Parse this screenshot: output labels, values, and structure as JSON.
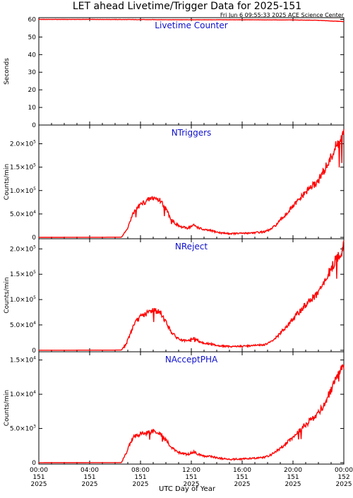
{
  "title": "LET ahead Livetime/Trigger Data for 2025-151",
  "timestamp": "Fri Jun  6 09:55:33 2025 ACE Science Center",
  "xlabel": "UTC Day of Year",
  "colors": {
    "series": "#ff0000",
    "panel_title": "#1010cc",
    "axes": "#000000"
  },
  "chart_data": [
    {
      "type": "line",
      "title": "Livetime Counter",
      "ylabel": "Seconds",
      "xlim": [
        0,
        24
      ],
      "ylim": [
        0,
        61
      ],
      "yticks": [
        {
          "value": 0,
          "label": "0"
        },
        {
          "value": 10,
          "label": "10"
        },
        {
          "value": 20,
          "label": "20"
        },
        {
          "value": 30,
          "label": "30"
        },
        {
          "value": 40,
          "label": "40"
        },
        {
          "value": 50,
          "label": "50"
        },
        {
          "value": 60,
          "label": "60"
        }
      ],
      "grid": false,
      "x": [
        0,
        4,
        8,
        12,
        16,
        20,
        22,
        23,
        24
      ],
      "y": [
        60,
        60,
        59.9,
        59.8,
        59.8,
        59.7,
        59.5,
        59.1,
        58.8
      ]
    },
    {
      "type": "line",
      "title": "NTriggers",
      "ylabel": "Counts/min",
      "xlim": [
        0,
        24
      ],
      "ylim": [
        -3000,
        240000
      ],
      "yticks": [
        {
          "value": 0,
          "label": "0"
        },
        {
          "value": 50000,
          "mant": "5.0×10",
          "exp": "4"
        },
        {
          "value": 100000,
          "mant": "1.0×10",
          "exp": "5"
        },
        {
          "value": 150000,
          "mant": "1.5×10",
          "exp": "5"
        },
        {
          "value": 200000,
          "mant": "2.0×10",
          "exp": "5"
        }
      ],
      "grid": false,
      "x": [
        0,
        6.5,
        6.9,
        7.2,
        7.5,
        8.0,
        8.5,
        9.0,
        9.3,
        9.6,
        10.0,
        10.4,
        10.8,
        11.2,
        11.7,
        12.2,
        12.6,
        13.0,
        13.6,
        14.2,
        15.0,
        16.0,
        17.0,
        17.8,
        18.3,
        18.8,
        19.3,
        19.8,
        20.3,
        20.8,
        21.3,
        21.8,
        22.2,
        22.6,
        23.0,
        23.4,
        23.7,
        24.0
      ],
      "y": [
        0,
        300,
        15000,
        35000,
        55000,
        70000,
        78000,
        85000,
        82000,
        78000,
        60000,
        40000,
        28000,
        22000,
        20000,
        26000,
        20000,
        16000,
        14000,
        10000,
        8000,
        8500,
        10000,
        12000,
        18000,
        30000,
        45000,
        60000,
        75000,
        90000,
        105000,
        115000,
        130000,
        150000,
        170000,
        195000,
        205000,
        220000
      ]
    },
    {
      "type": "line",
      "title": "NReject",
      "ylabel": "Counts/min",
      "xlim": [
        0,
        24
      ],
      "ylim": [
        -3000,
        220000
      ],
      "yticks": [
        {
          "value": 0,
          "label": "0"
        },
        {
          "value": 50000,
          "mant": "5.0×10",
          "exp": "4"
        },
        {
          "value": 100000,
          "mant": "1.0×10",
          "exp": "5"
        },
        {
          "value": 150000,
          "mant": "1.5×10",
          "exp": "5"
        },
        {
          "value": 200000,
          "mant": "2.0×10",
          "exp": "5"
        }
      ],
      "grid": false,
      "x": [
        0,
        6.5,
        6.9,
        7.2,
        7.5,
        8.0,
        8.5,
        9.0,
        9.3,
        9.6,
        10.0,
        10.4,
        10.8,
        11.2,
        11.7,
        12.2,
        12.6,
        13.0,
        13.6,
        14.2,
        15.0,
        16.0,
        17.0,
        17.8,
        18.3,
        18.8,
        19.3,
        19.8,
        20.3,
        20.8,
        21.3,
        21.8,
        22.2,
        22.6,
        23.0,
        23.4,
        23.7,
        24.0
      ],
      "y": [
        0,
        300,
        14000,
        33000,
        52000,
        66000,
        73000,
        80000,
        77000,
        73000,
        56000,
        37000,
        26000,
        20000,
        18000,
        24000,
        18000,
        14000,
        12000,
        9000,
        7500,
        8000,
        9500,
        11000,
        17000,
        28000,
        42000,
        56000,
        70000,
        84000,
        98000,
        108000,
        122000,
        140000,
        160000,
        180000,
        190000,
        205000
      ]
    },
    {
      "type": "line",
      "title": "NAcceptPHA",
      "ylabel": "Counts/min",
      "xlim": [
        0,
        24
      ],
      "ylim": [
        -200,
        16200
      ],
      "yticks": [
        {
          "value": 0,
          "label": "0"
        },
        {
          "value": 5000,
          "mant": "5.0×10",
          "exp": "3"
        },
        {
          "value": 10000,
          "mant": "1.0×10",
          "exp": "4"
        },
        {
          "value": 15000,
          "mant": "1.5×10",
          "exp": "4"
        }
      ],
      "grid": false,
      "x": [
        0,
        6.5,
        6.9,
        7.2,
        7.5,
        8.0,
        8.5,
        9.0,
        9.3,
        9.6,
        10.0,
        10.4,
        10.8,
        11.2,
        11.7,
        12.2,
        12.6,
        13.0,
        13.6,
        14.2,
        15.0,
        16.0,
        17.0,
        17.8,
        18.3,
        18.8,
        19.3,
        19.8,
        20.3,
        20.8,
        21.3,
        21.8,
        22.2,
        22.6,
        23.0,
        23.4,
        23.7,
        24.0
      ],
      "y": [
        0,
        20,
        1500,
        3000,
        3800,
        4200,
        4400,
        4700,
        4500,
        4200,
        3300,
        2300,
        1700,
        1400,
        1200,
        1600,
        1200,
        1000,
        900,
        650,
        500,
        550,
        650,
        800,
        1200,
        1800,
        2600,
        3400,
        4300,
        5200,
        6100,
        6900,
        7800,
        9000,
        10500,
        12000,
        13000,
        14000
      ]
    }
  ],
  "xticks": [
    {
      "value": 0,
      "lines": [
        "00:00",
        "151",
        "2025"
      ]
    },
    {
      "value": 4,
      "lines": [
        "04:00",
        "151",
        "2025"
      ]
    },
    {
      "value": 8,
      "lines": [
        "08:00",
        "151",
        "2025"
      ]
    },
    {
      "value": 12,
      "lines": [
        "12:00",
        "151",
        "2025"
      ]
    },
    {
      "value": 16,
      "lines": [
        "16:00",
        "151",
        "2025"
      ]
    },
    {
      "value": 20,
      "lines": [
        "20:00",
        "151",
        "2025"
      ]
    },
    {
      "value": 24,
      "lines": [
        "00:00",
        "152",
        "2025"
      ]
    }
  ]
}
